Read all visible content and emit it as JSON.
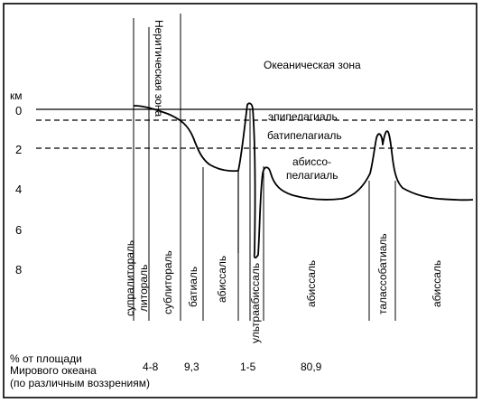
{
  "diagram": {
    "axis_unit": "км",
    "depth_ticks": [
      "0",
      "2",
      "4",
      "6",
      "8"
    ],
    "zones": {
      "neritic": "Неритическая зона",
      "oceanic": "Океаническая зона"
    },
    "pelagic_layers": {
      "epipelagial": "эпипелагиаль",
      "batipelagial": "батипелагиаль",
      "abisso_line1": "абиссо-",
      "abisso_line2": "пелагиаль"
    },
    "benthic_zones": [
      "супралитораль",
      "литораль",
      "сублитораль",
      "батиаль",
      "абиссаль",
      "ультраабиссаль",
      "абиссаль",
      "талассобатиаль",
      "абиссаль"
    ],
    "footnote": {
      "line1": "% от площади",
      "line2": "Мирового океана",
      "line3": "(по различным воззрениям)"
    },
    "percentages": [
      "4-8",
      "9,3",
      "1-5",
      "80,9"
    ]
  }
}
